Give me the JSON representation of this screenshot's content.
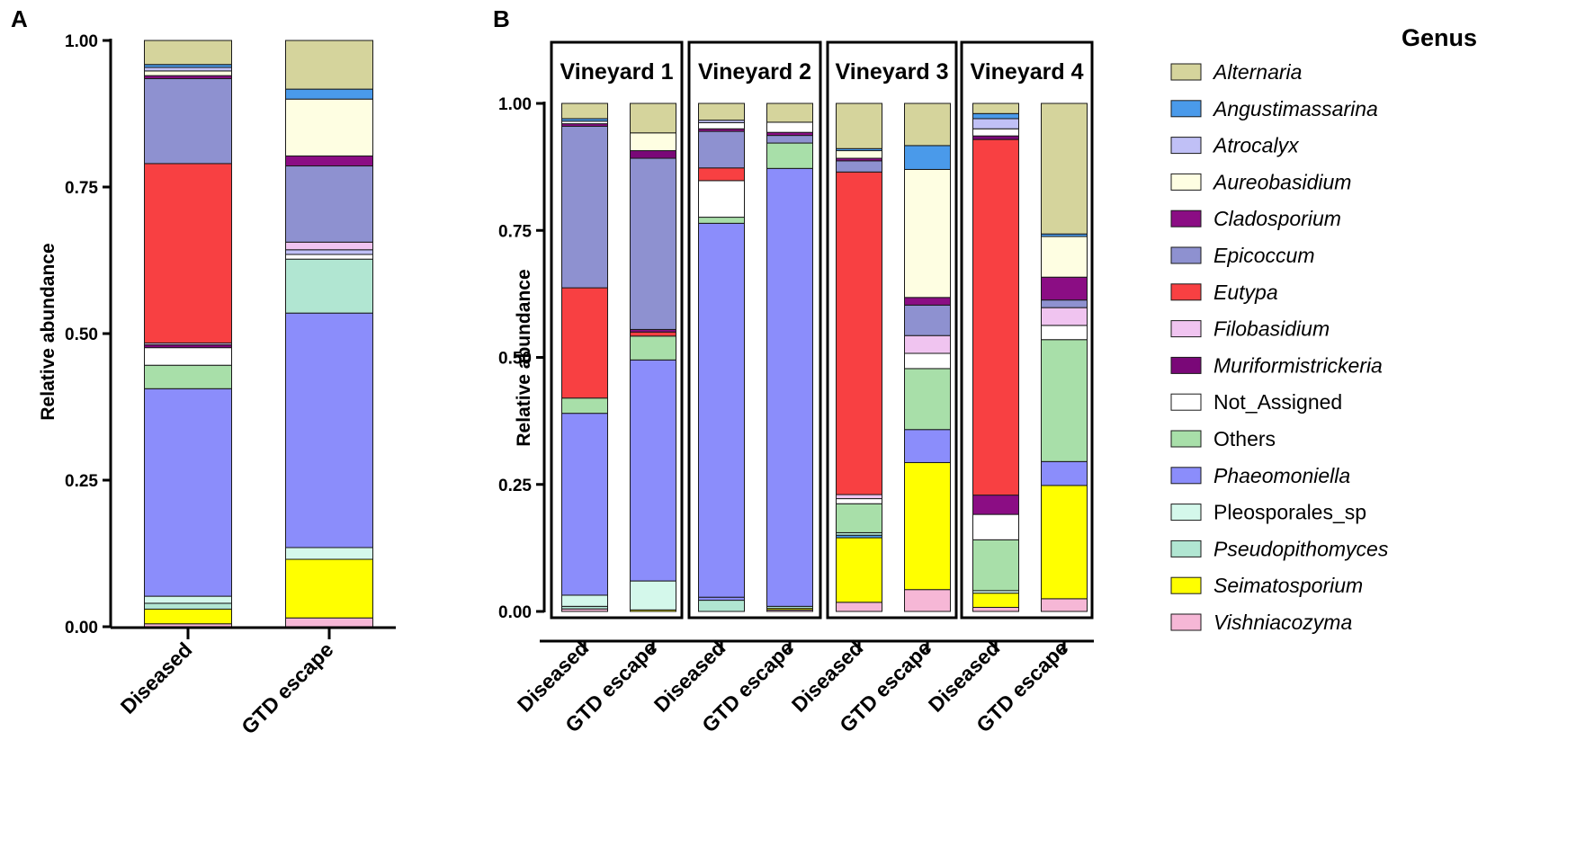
{
  "chart_data": {
    "type": "stacked-bar",
    "genus_order": [
      "Alternaria",
      "Angustimassarina",
      "Atrocalyx",
      "Aureobasidium",
      "Cladosporium",
      "Epicoccum",
      "Eutypa",
      "Filobasidium",
      "Muriformistrickeria",
      "Not_Assigned",
      "Others",
      "Phaeomoniella",
      "Pleosporales_sp",
      "Pseudopithomyces",
      "Seimatosporium",
      "Vishniacozyma"
    ],
    "colors": {
      "Alternaria": "#d5d49c",
      "Angustimassarina": "#4a9aea",
      "Atrocalyx": "#c0c0f6",
      "Aureobasidium": "#fefee2",
      "Cladosporium": "#8b0d84",
      "Epicoccum": "#8e91d0",
      "Eutypa": "#f84042",
      "Filobasidium": "#f0c4f0",
      "Muriformistrickeria": "#7a0878",
      "Not_Assigned": "#ffffff",
      "Others": "#a8dfa9",
      "Phaeomoniella": "#8b8dfb",
      "Pleosporales_sp": "#d4f8eb",
      "Pseudopithomyces": "#b1e6d2",
      "Seimatosporium": "#ffff00",
      "Vishniacozyma": "#f6b7d6"
    },
    "panels": [
      {
        "letter": "A",
        "ylabel": "Relative abundance",
        "ylim": [
          0,
          1
        ],
        "yticks": [
          "0.00",
          "0.25",
          "0.50",
          "0.75",
          "1.00"
        ],
        "groups": [
          {
            "title": "",
            "bars": [
              {
                "category": "Diseased",
                "segments": [
                  [
                    "Vishniacozyma",
                    0.005
                  ],
                  [
                    "Seimatosporium",
                    0.025
                  ],
                  [
                    "Pseudopithomyces",
                    0.01
                  ],
                  [
                    "Pleosporales_sp",
                    0.012
                  ],
                  [
                    "Phaeomoniella",
                    0.354
                  ],
                  [
                    "Others",
                    0.04
                  ],
                  [
                    "Not_Assigned",
                    0.03
                  ],
                  [
                    "Muriformistrickeria",
                    0.005
                  ],
                  [
                    "Filobasidium",
                    0.003
                  ],
                  [
                    "Eutypa",
                    0.306
                  ],
                  [
                    "Epicoccum",
                    0.145
                  ],
                  [
                    "Cladosporium",
                    0.005
                  ],
                  [
                    "Aureobasidium",
                    0.008
                  ],
                  [
                    "Atrocalyx",
                    0.006
                  ],
                  [
                    "Angustimassarina",
                    0.005
                  ],
                  [
                    "Alternaria",
                    0.041
                  ]
                ]
              },
              {
                "category": "GTD escape",
                "segments": [
                  [
                    "Vishniacozyma",
                    0.015
                  ],
                  [
                    "Seimatosporium",
                    0.1
                  ],
                  [
                    "Pleosporales_sp",
                    0.02
                  ],
                  [
                    "Phaeomoniella",
                    0.4
                  ],
                  [
                    "Pseudopithomyces",
                    0.092
                  ],
                  [
                    "Not_Assigned",
                    0.008
                  ],
                  [
                    "Atrocalyx",
                    0.008
                  ],
                  [
                    "Filobasidium",
                    0.013
                  ],
                  [
                    "Epicoccum",
                    0.13
                  ],
                  [
                    "Cladosporium",
                    0.017
                  ],
                  [
                    "Aureobasidium",
                    0.097
                  ],
                  [
                    "Angustimassarina",
                    0.017
                  ],
                  [
                    "Alternaria",
                    0.083
                  ]
                ]
              }
            ]
          }
        ]
      },
      {
        "letter": "B",
        "ylabel": "Relative abundance",
        "ylim": [
          0,
          1
        ],
        "yticks": [
          "0.00",
          "0.25",
          "0.50",
          "0.75",
          "1.00"
        ],
        "groups": [
          {
            "title": "Vineyard 1",
            "bars": [
              {
                "category": "Diseased",
                "segments": [
                  [
                    "Vishniacozyma",
                    0.005
                  ],
                  [
                    "Pseudopithomyces",
                    0.005
                  ],
                  [
                    "Pleosporales_sp",
                    0.022
                  ],
                  [
                    "Phaeomoniella",
                    0.358
                  ],
                  [
                    "Others",
                    0.03
                  ],
                  [
                    "Eutypa",
                    0.217
                  ],
                  [
                    "Epicoccum",
                    0.318
                  ],
                  [
                    "Cladosporium",
                    0.005
                  ],
                  [
                    "Not_Assigned",
                    0.005
                  ],
                  [
                    "Angustimassarina",
                    0.005
                  ],
                  [
                    "Alternaria",
                    0.03
                  ]
                ]
              },
              {
                "category": "GTD escape",
                "segments": [
                  [
                    "Seimatosporium",
                    0.003
                  ],
                  [
                    "Pleosporales_sp",
                    0.057
                  ],
                  [
                    "Phaeomoniella",
                    0.435
                  ],
                  [
                    "Others",
                    0.047
                  ],
                  [
                    "Eutypa",
                    0.008
                  ],
                  [
                    "Cladosporium",
                    0.005
                  ],
                  [
                    "Epicoccum",
                    0.337
                  ],
                  [
                    "Muriformistrickeria",
                    0.015
                  ],
                  [
                    "Aureobasidium",
                    0.035
                  ],
                  [
                    "Alternaria",
                    0.058
                  ]
                ]
              }
            ]
          },
          {
            "title": "Vineyard 2",
            "bars": [
              {
                "category": "Diseased",
                "segments": [
                  [
                    "Pseudopithomyces",
                    0.022
                  ],
                  [
                    "Phaeomoniella",
                    0.006
                  ],
                  [
                    "Phaeomoniella",
                    0.736
                  ],
                  [
                    "Others",
                    0.012
                  ],
                  [
                    "Not_Assigned",
                    0.072
                  ],
                  [
                    "Eutypa",
                    0.025
                  ],
                  [
                    "Epicoccum",
                    0.072
                  ],
                  [
                    "Cladosporium",
                    0.005
                  ],
                  [
                    "Not_Assigned",
                    0.012
                  ],
                  [
                    "Atrocalyx",
                    0.005
                  ],
                  [
                    "Alternaria",
                    0.033
                  ]
                ]
              },
              {
                "category": "GTD escape",
                "segments": [
                  [
                    "Vishniacozyma",
                    0.003
                  ],
                  [
                    "Seimatosporium",
                    0.003
                  ],
                  [
                    "Pseudopithomyces",
                    0.004
                  ],
                  [
                    "Phaeomoniella",
                    0.862
                  ],
                  [
                    "Others",
                    0.05
                  ],
                  [
                    "Epicoccum",
                    0.015
                  ],
                  [
                    "Cladosporium",
                    0.006
                  ],
                  [
                    "Not_Assigned",
                    0.02
                  ],
                  [
                    "Alternaria",
                    0.037
                  ]
                ]
              }
            ]
          },
          {
            "title": "Vineyard 3",
            "bars": [
              {
                "category": "Diseased",
                "segments": [
                  [
                    "Vishniacozyma",
                    0.018
                  ],
                  [
                    "Seimatosporium",
                    0.127
                  ],
                  [
                    "Angustimassarina",
                    0.005
                  ],
                  [
                    "Pseudopithomyces",
                    0.005
                  ],
                  [
                    "Others",
                    0.057
                  ],
                  [
                    "Not_Assigned",
                    0.01
                  ],
                  [
                    "Filobasidium",
                    0.008
                  ],
                  [
                    "Eutypa",
                    0.635
                  ],
                  [
                    "Epicoccum",
                    0.022
                  ],
                  [
                    "Cladosporium",
                    0.005
                  ],
                  [
                    "Aureobasidium",
                    0.015
                  ],
                  [
                    "Angustimassarina",
                    0.004
                  ],
                  [
                    "Alternaria",
                    0.089
                  ]
                ]
              },
              {
                "category": "GTD escape",
                "segments": [
                  [
                    "Vishniacozyma",
                    0.043
                  ],
                  [
                    "Seimatosporium",
                    0.25
                  ],
                  [
                    "Phaeomoniella",
                    0.065
                  ],
                  [
                    "Others",
                    0.12
                  ],
                  [
                    "Not_Assigned",
                    0.03
                  ],
                  [
                    "Filobasidium",
                    0.035
                  ],
                  [
                    "Epicoccum",
                    0.06
                  ],
                  [
                    "Cladosporium",
                    0.015
                  ],
                  [
                    "Aureobasidium",
                    0.252
                  ],
                  [
                    "Angustimassarina",
                    0.047
                  ],
                  [
                    "Alternaria",
                    0.083
                  ]
                ]
              }
            ]
          },
          {
            "title": "Vineyard 4",
            "bars": [
              {
                "category": "Diseased",
                "segments": [
                  [
                    "Vishniacozyma",
                    0.008
                  ],
                  [
                    "Seimatosporium",
                    0.028
                  ],
                  [
                    "Pleosporales_sp",
                    0.005
                  ],
                  [
                    "Others",
                    0.1
                  ],
                  [
                    "Not_Assigned",
                    0.05
                  ],
                  [
                    "Cladosporium",
                    0.038
                  ],
                  [
                    "Eutypa",
                    0.7
                  ],
                  [
                    "Muriformistrickeria",
                    0.007
                  ],
                  [
                    "Not_Assigned",
                    0.014
                  ],
                  [
                    "Atrocalyx",
                    0.02
                  ],
                  [
                    "Angustimassarina",
                    0.01
                  ],
                  [
                    "Alternaria",
                    0.02
                  ]
                ]
              },
              {
                "category": "GTD escape",
                "segments": [
                  [
                    "Vishniacozyma",
                    0.025
                  ],
                  [
                    "Seimatosporium",
                    0.223
                  ],
                  [
                    "Phaeomoniella",
                    0.047
                  ],
                  [
                    "Others",
                    0.24
                  ],
                  [
                    "Not_Assigned",
                    0.028
                  ],
                  [
                    "Filobasidium",
                    0.035
                  ],
                  [
                    "Epicoccum",
                    0.015
                  ],
                  [
                    "Cladosporium",
                    0.045
                  ],
                  [
                    "Aureobasidium",
                    0.08
                  ],
                  [
                    "Angustimassarina",
                    0.005
                  ],
                  [
                    "Alternaria",
                    0.257
                  ]
                ]
              }
            ]
          }
        ]
      }
    ]
  },
  "legend": {
    "title": "Genus",
    "items": [
      {
        "label": "Alternaria",
        "italic": true
      },
      {
        "label": "Angustimassarina",
        "italic": true
      },
      {
        "label": "Atrocalyx",
        "italic": true
      },
      {
        "label": "Aureobasidium",
        "italic": true
      },
      {
        "label": "Cladosporium",
        "italic": true
      },
      {
        "label": "Epicoccum",
        "italic": true
      },
      {
        "label": "Eutypa",
        "italic": true
      },
      {
        "label": "Filobasidium",
        "italic": true
      },
      {
        "label": "Muriformistrickeria",
        "italic": true
      },
      {
        "label": "Not_Assigned",
        "italic": false
      },
      {
        "label": "Others",
        "italic": false
      },
      {
        "label": "Phaeomoniella",
        "italic": true
      },
      {
        "label": "Pleosporales_sp",
        "italic": false
      },
      {
        "label": "Pseudopithomyces",
        "italic": true
      },
      {
        "label": "Seimatosporium",
        "italic": true
      },
      {
        "label": "Vishniacozyma",
        "italic": true
      }
    ]
  }
}
